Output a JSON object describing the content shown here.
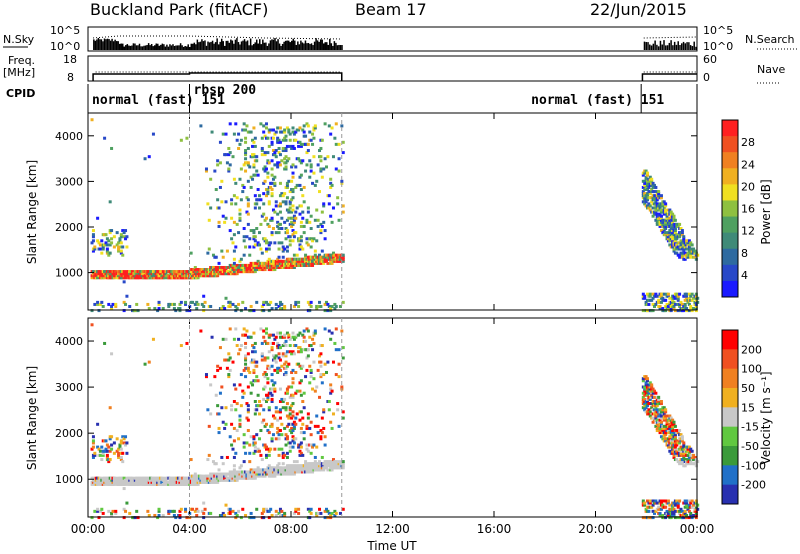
{
  "header": {
    "station": "Buckland Park (fitACF)",
    "beam": "Beam 17",
    "date": "22/Jun/2015"
  },
  "panels": {
    "nsky_label": "N.Sky",
    "nsky_ticks": [
      "10^5",
      "10^0"
    ],
    "nsearch_ticks": [
      "10^5",
      "10^0"
    ],
    "nsearch_label": "N.Search",
    "freq_label": "Freq.",
    "freq_unit": "[MHz]",
    "freq_ticks": [
      "18",
      "8"
    ],
    "nave_ticks": [
      "60",
      "0"
    ],
    "nave_label": "Nave",
    "cpid_label": "CPID",
    "cpid_modes": [
      {
        "label": "normal (fast) 151",
        "start": 0,
        "end": 4
      },
      {
        "label": "rbsp 200",
        "start": 4,
        "end": 10
      },
      {
        "label": "normal (fast) 151",
        "start": 21.8,
        "end": 24
      }
    ]
  },
  "chart_data": {
    "type": "heatmap",
    "x_label": "Time UT",
    "x_range_hours": [
      0,
      24
    ],
    "x_ticks": [
      "00:00",
      "04:00",
      "08:00",
      "12:00",
      "16:00",
      "20:00",
      "00:00"
    ],
    "y_label": "Slant Range [km]",
    "y_range_km": [
      180,
      4500
    ],
    "y_ticks": [
      "1000",
      "2000",
      "3000",
      "4000"
    ],
    "data_gaps_hours": [
      [
        10,
        21.8
      ]
    ],
    "power": {
      "colorbar_label": "Power [dB]",
      "colorbar_ticks": [
        "28",
        "24",
        "20",
        "16",
        "12",
        "8",
        "4"
      ],
      "range_db": [
        0,
        32
      ],
      "colors": [
        "#1a1aff",
        "#2848c8",
        "#2e6aa0",
        "#3f8a78",
        "#4fa060",
        "#8ec040",
        "#f0e020",
        "#f0b020",
        "#f08020",
        "#f05020",
        "#ff2020"
      ]
    },
    "velocity": {
      "colorbar_label": "Velocity [m s⁻¹]",
      "colorbar_ticks": [
        "200",
        "100",
        "50",
        "15",
        "-15",
        "-50",
        "-100",
        "-200"
      ],
      "colors": [
        "#2830b0",
        "#2070c8",
        "#3a9a3a",
        "#60c840",
        "#c8c8c8",
        "#f0b020",
        "#f08020",
        "#f05020",
        "#ff0000"
      ]
    }
  }
}
